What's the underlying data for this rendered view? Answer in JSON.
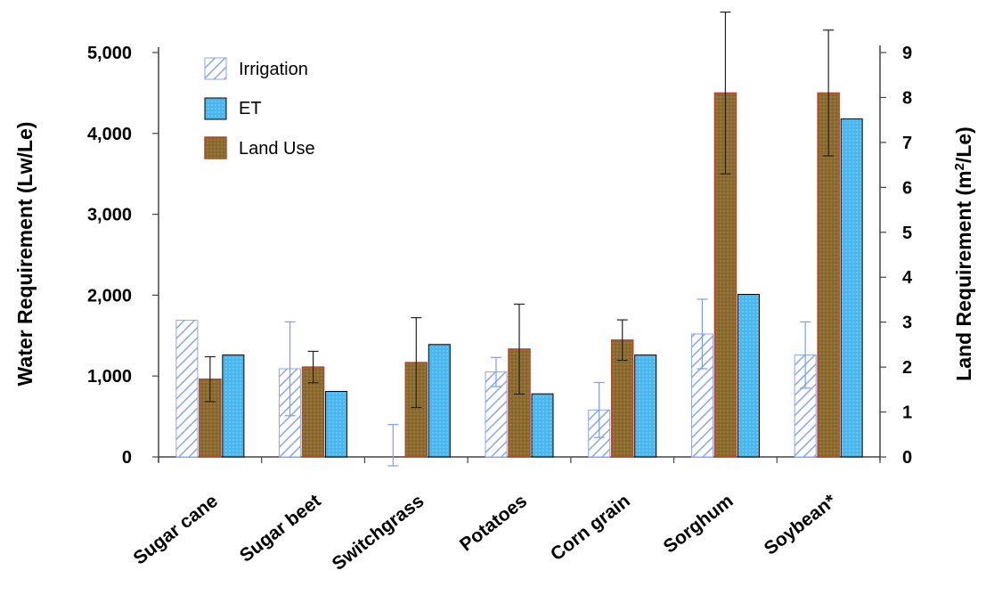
{
  "chart_data": {
    "type": "bar",
    "categories": [
      "Sugar cane",
      "Sugar beet",
      "Switchgrass",
      "Potatoes",
      "Corn grain",
      "Sorghum",
      "Soybean*"
    ],
    "series": [
      {
        "name": "Irrigation",
        "axis": "left",
        "values": [
          1690,
          1090,
          0,
          1050,
          580,
          1520,
          1260
        ],
        "error": [
          null,
          580,
          400,
          180,
          340,
          430,
          410
        ],
        "color": "#7b9cf0"
      },
      {
        "name": "ET",
        "axis": "left",
        "values": [
          1260,
          810,
          1390,
          780,
          1260,
          2010,
          4180
        ],
        "color": "#4db8ee"
      },
      {
        "name": "Land Use",
        "axis": "right",
        "values": [
          1.73,
          2.0,
          2.1,
          2.4,
          2.6,
          8.1,
          8.1
        ],
        "error": [
          0.5,
          0.35,
          1.0,
          1.0,
          0.45,
          1.8,
          1.4
        ],
        "color": "#8a6a2e"
      }
    ],
    "ylabel": "Water Requirement (Lw/Le)",
    "y2label": "Land Requirement (m²/Le)",
    "ylim": [
      0,
      5000
    ],
    "y2lim": [
      0,
      9
    ],
    "yticks": [
      "0",
      "1,000",
      "2,000",
      "3,000",
      "4,000",
      "5,000"
    ],
    "y2ticks": [
      "0",
      "1",
      "2",
      "3",
      "4",
      "5",
      "6",
      "7",
      "8",
      "9"
    ],
    "legend": {
      "position": "top-left",
      "entries": [
        "Irrigation",
        "ET",
        "Land Use"
      ]
    },
    "grid": false
  }
}
